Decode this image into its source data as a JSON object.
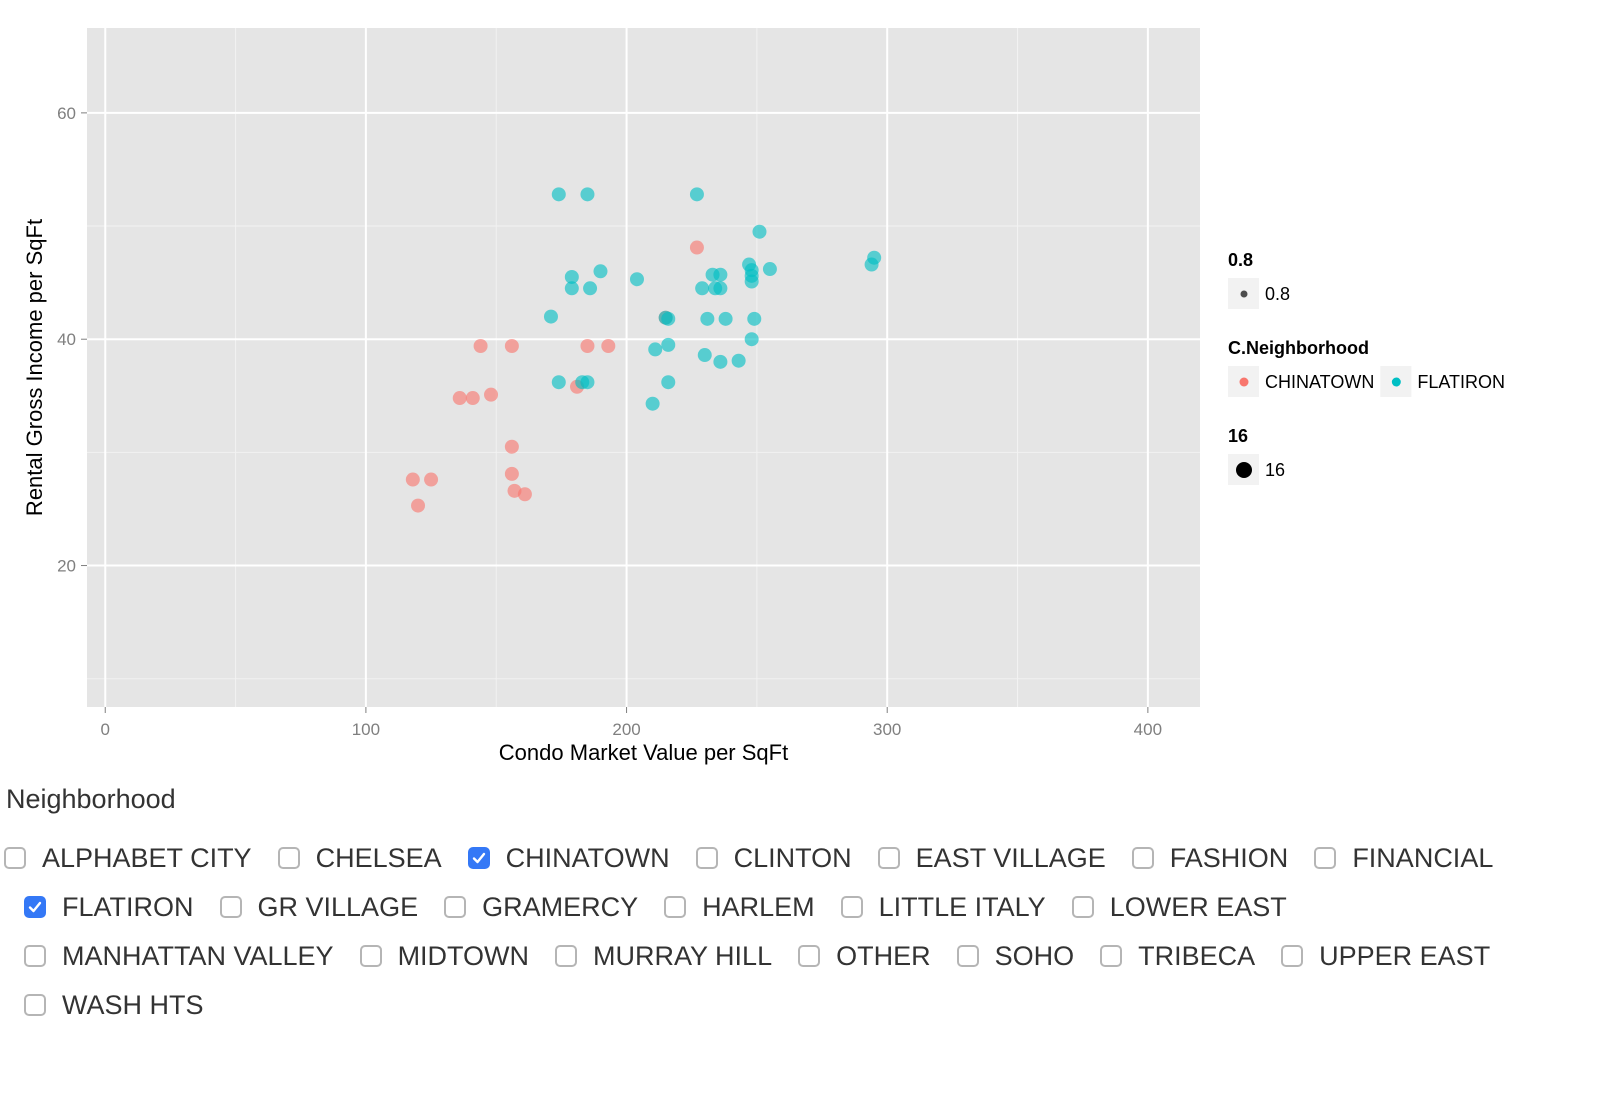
{
  "chart_data": {
    "type": "scatter",
    "xlabel": "Condo Market Value per SqFt",
    "ylabel": "Rental Gross Income per SqFt",
    "xlim": [
      -7,
      420
    ],
    "ylim": [
      7.5,
      67.5
    ],
    "x_ticks": [
      0,
      100,
      200,
      300,
      400
    ],
    "y_ticks": [
      20,
      40,
      60
    ],
    "grid": true,
    "legend_position": "right",
    "legends": [
      {
        "title": "0.8",
        "entries": [
          {
            "label": "0.8",
            "marker": "small-dot",
            "color": "#4d4d4d"
          }
        ]
      },
      {
        "title": "C.Neighborhood",
        "entries": [
          {
            "label": "CHINATOWN",
            "color": "#F8766D"
          },
          {
            "label": "FLATIRON",
            "color": "#00BFC4"
          }
        ]
      },
      {
        "title": "16",
        "entries": [
          {
            "label": "16",
            "marker": "large-dot",
            "color": "#000000"
          }
        ]
      }
    ],
    "series": [
      {
        "name": "CHINATOWN",
        "color": "#F8766D",
        "points": [
          [
            118,
            27.6
          ],
          [
            120,
            25.3
          ],
          [
            125,
            27.6
          ],
          [
            136,
            34.8
          ],
          [
            141,
            34.8
          ],
          [
            144,
            39.4
          ],
          [
            148,
            35.1
          ],
          [
            156,
            30.5
          ],
          [
            156,
            28.1
          ],
          [
            157,
            26.6
          ],
          [
            156,
            39.4
          ],
          [
            161,
            26.3
          ],
          [
            181,
            35.8
          ],
          [
            185,
            39.4
          ],
          [
            193,
            39.4
          ],
          [
            215,
            41.9
          ],
          [
            227,
            48.1
          ]
        ]
      },
      {
        "name": "FLATIRON",
        "color": "#00BFC4",
        "points": [
          [
            171,
            42.0
          ],
          [
            174,
            52.8
          ],
          [
            174,
            36.2
          ],
          [
            179,
            45.5
          ],
          [
            179,
            44.5
          ],
          [
            183,
            36.2
          ],
          [
            185,
            52.8
          ],
          [
            185,
            36.2
          ],
          [
            186,
            44.5
          ],
          [
            190,
            46.0
          ],
          [
            204,
            45.3
          ],
          [
            210,
            34.3
          ],
          [
            211,
            39.1
          ],
          [
            215,
            41.9
          ],
          [
            216,
            41.8
          ],
          [
            216,
            39.5
          ],
          [
            216,
            36.2
          ],
          [
            227,
            52.8
          ],
          [
            229,
            44.5
          ],
          [
            230,
            38.6
          ],
          [
            231,
            41.8
          ],
          [
            233,
            45.7
          ],
          [
            234,
            44.5
          ],
          [
            236,
            45.7
          ],
          [
            236,
            44.5
          ],
          [
            236,
            38.0
          ],
          [
            238,
            41.8
          ],
          [
            243,
            38.1
          ],
          [
            247,
            46.6
          ],
          [
            248,
            46.1
          ],
          [
            248,
            45.1
          ],
          [
            248,
            45.6
          ],
          [
            248,
            40.0
          ],
          [
            249,
            41.8
          ],
          [
            251,
            49.5
          ],
          [
            255,
            46.2
          ],
          [
            294,
            46.6
          ],
          [
            295,
            47.2
          ]
        ]
      }
    ]
  },
  "neighborhood": {
    "title": "Neighborhood",
    "rows": [
      [
        {
          "label": "ALPHABET CITY",
          "checked": false
        },
        {
          "label": "CHELSEA",
          "checked": false
        },
        {
          "label": "CHINATOWN",
          "checked": true
        },
        {
          "label": "CLINTON",
          "checked": false
        },
        {
          "label": "EAST VILLAGE",
          "checked": false
        },
        {
          "label": "FASHION",
          "checked": false
        },
        {
          "label": "FINANCIAL",
          "checked": false
        }
      ],
      [
        {
          "label": "FLATIRON",
          "checked": true
        },
        {
          "label": "GR VILLAGE",
          "checked": false
        },
        {
          "label": "GRAMERCY",
          "checked": false
        },
        {
          "label": "HARLEM",
          "checked": false
        },
        {
          "label": "LITTLE ITALY",
          "checked": false
        },
        {
          "label": "LOWER EAST",
          "checked": false
        }
      ],
      [
        {
          "label": "MANHATTAN VALLEY",
          "checked": false
        },
        {
          "label": "MIDTOWN",
          "checked": false
        },
        {
          "label": "MURRAY HILL",
          "checked": false
        },
        {
          "label": "OTHER",
          "checked": false
        },
        {
          "label": "SOHO",
          "checked": false
        },
        {
          "label": "TRIBECA",
          "checked": false
        },
        {
          "label": "UPPER EAST",
          "checked": false
        }
      ],
      [
        {
          "label": "WASH HTS",
          "checked": false
        }
      ]
    ]
  }
}
